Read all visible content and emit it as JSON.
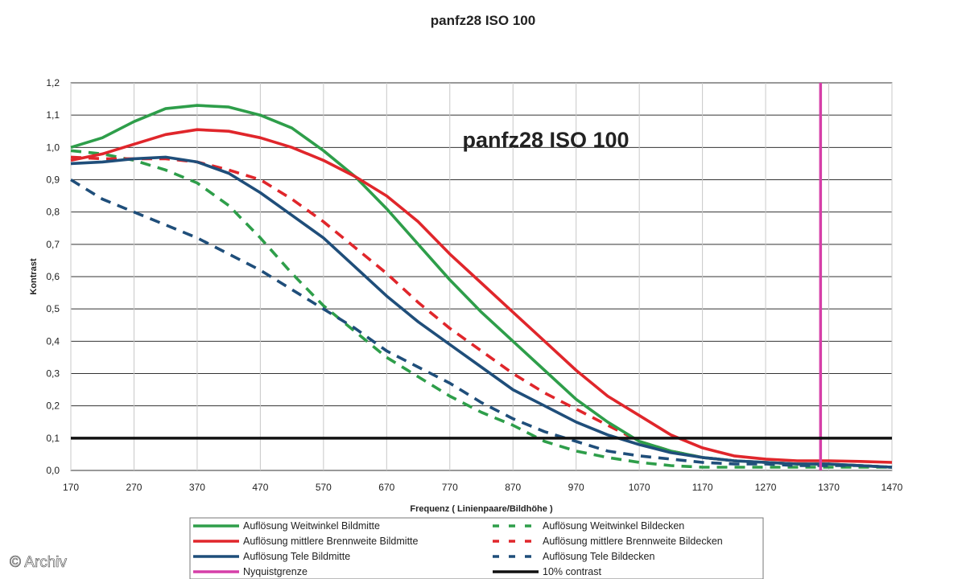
{
  "chart_data": {
    "type": "line",
    "title": "panfz28 ISO 100",
    "inner_title": "panfz28 ISO 100",
    "xlabel": "Frequenz ( Linienpaare/Bildhöhe )",
    "ylabel": "Kontrast",
    "xlim": [
      170,
      1470
    ],
    "ylim": [
      0.0,
      1.2
    ],
    "x_ticks": [
      "170",
      "270",
      "370",
      "470",
      "570",
      "670",
      "770",
      "870",
      "970",
      "1070",
      "1170",
      "1270",
      "1370",
      "1470"
    ],
    "y_ticks": [
      "0,0",
      "0,1",
      "0,2",
      "0,3",
      "0,4",
      "0,5",
      "0,6",
      "0,7",
      "0,8",
      "0,9",
      "1,0",
      "1,1",
      "1,2"
    ],
    "grid": "horizontal and vertical",
    "legend_position": "bottom",
    "series": [
      {
        "name": "Auflösung Weitwinkel Bildmitte",
        "color": "#2e9e4a",
        "style": "solid",
        "x": [
          170,
          220,
          270,
          320,
          370,
          420,
          470,
          520,
          570,
          620,
          670,
          720,
          770,
          820,
          870,
          920,
          970,
          1020,
          1070,
          1120,
          1170,
          1220,
          1270,
          1320,
          1370,
          1420,
          1470
        ],
        "y": [
          1.0,
          1.03,
          1.08,
          1.12,
          1.13,
          1.125,
          1.1,
          1.06,
          0.99,
          0.91,
          0.81,
          0.7,
          0.59,
          0.49,
          0.4,
          0.31,
          0.22,
          0.15,
          0.09,
          0.06,
          0.04,
          0.03,
          0.025,
          0.02,
          0.02,
          0.015,
          0.01
        ]
      },
      {
        "name": "Auflösung mittlere Brennweite Bildmitte",
        "color": "#e0262b",
        "style": "solid",
        "x": [
          170,
          220,
          270,
          320,
          370,
          420,
          470,
          520,
          570,
          620,
          670,
          720,
          770,
          820,
          870,
          920,
          970,
          1020,
          1070,
          1120,
          1170,
          1220,
          1270,
          1320,
          1370,
          1420,
          1470
        ],
        "y": [
          0.96,
          0.98,
          1.01,
          1.04,
          1.055,
          1.05,
          1.03,
          1.0,
          0.96,
          0.91,
          0.85,
          0.77,
          0.67,
          0.58,
          0.49,
          0.4,
          0.31,
          0.23,
          0.17,
          0.11,
          0.07,
          0.045,
          0.035,
          0.03,
          0.03,
          0.028,
          0.025
        ]
      },
      {
        "name": "Auflösung Tele Bildmitte",
        "color": "#1f4e7a",
        "style": "solid",
        "x": [
          170,
          220,
          270,
          320,
          370,
          420,
          470,
          520,
          570,
          620,
          670,
          720,
          770,
          820,
          870,
          920,
          970,
          1020,
          1070,
          1120,
          1170,
          1220,
          1270,
          1320,
          1370,
          1420,
          1470
        ],
        "y": [
          0.95,
          0.955,
          0.965,
          0.97,
          0.955,
          0.92,
          0.86,
          0.79,
          0.72,
          0.63,
          0.54,
          0.46,
          0.39,
          0.32,
          0.25,
          0.2,
          0.15,
          0.11,
          0.08,
          0.055,
          0.04,
          0.03,
          0.025,
          0.02,
          0.02,
          0.015,
          0.01
        ]
      },
      {
        "name": "Auflösung Weitwinkel Bildecken",
        "color": "#2e9e4a",
        "style": "dashed",
        "x": [
          170,
          220,
          270,
          320,
          370,
          420,
          470,
          520,
          570,
          620,
          670,
          720,
          770,
          820,
          870,
          920,
          970,
          1020,
          1070,
          1120,
          1170,
          1220,
          1270,
          1320,
          1370,
          1420,
          1470
        ],
        "y": [
          0.99,
          0.98,
          0.96,
          0.93,
          0.89,
          0.82,
          0.72,
          0.61,
          0.51,
          0.43,
          0.35,
          0.29,
          0.23,
          0.18,
          0.14,
          0.09,
          0.06,
          0.04,
          0.025,
          0.015,
          0.01,
          0.01,
          0.01,
          0.01,
          0.01,
          0.01,
          0.01
        ]
      },
      {
        "name": "Auflösung mittlere Brennweite Bildecken",
        "color": "#e0262b",
        "style": "dashed",
        "x": [
          170,
          220,
          270,
          320,
          370,
          420,
          470,
          520,
          570,
          620,
          670,
          720,
          770,
          820,
          870,
          920,
          970,
          1020,
          1070,
          1120,
          1170,
          1220,
          1270,
          1320,
          1370,
          1420,
          1470
        ],
        "y": [
          0.97,
          0.965,
          0.965,
          0.965,
          0.955,
          0.93,
          0.9,
          0.84,
          0.77,
          0.69,
          0.61,
          0.52,
          0.44,
          0.37,
          0.3,
          0.24,
          0.19,
          0.14,
          0.09,
          0.06,
          0.04,
          0.03,
          0.025,
          0.02,
          0.02,
          0.015,
          0.01
        ]
      },
      {
        "name": "Auflösung Tele Bildecken",
        "color": "#1f4e7a",
        "style": "dashed",
        "x": [
          170,
          220,
          270,
          320,
          370,
          420,
          470,
          520,
          570,
          620,
          670,
          720,
          770,
          820,
          870,
          920,
          970,
          1020,
          1070,
          1120,
          1170,
          1220,
          1270,
          1320,
          1370,
          1420,
          1470
        ],
        "y": [
          0.9,
          0.84,
          0.8,
          0.76,
          0.72,
          0.67,
          0.62,
          0.56,
          0.5,
          0.44,
          0.37,
          0.32,
          0.27,
          0.21,
          0.16,
          0.12,
          0.09,
          0.06,
          0.045,
          0.035,
          0.025,
          0.02,
          0.02,
          0.015,
          0.015,
          0.015,
          0.01
        ]
      }
    ],
    "reference_lines": [
      {
        "name": "Nyquistgrenze",
        "color": "#d63fa8",
        "orientation": "vertical",
        "value": 1357
      },
      {
        "name": "10% contrast",
        "color": "#111111",
        "orientation": "horizontal",
        "value": 0.1
      }
    ],
    "legend_entries": [
      {
        "label": "Auflösung Weitwinkel Bildmitte",
        "color": "#2e9e4a",
        "style": "solid"
      },
      {
        "label": "Auflösung Weitwinkel Bildecken",
        "color": "#2e9e4a",
        "style": "dashed"
      },
      {
        "label": "Auflösung mittlere Brennweite Bildmitte",
        "color": "#e0262b",
        "style": "solid"
      },
      {
        "label": "Auflösung mittlere Brennweite Bildecken",
        "color": "#e0262b",
        "style": "dashed"
      },
      {
        "label": "Auflösung Tele Bildmitte",
        "color": "#1f4e7a",
        "style": "solid"
      },
      {
        "label": "Auflösung Tele Bildecken",
        "color": "#1f4e7a",
        "style": "dashed"
      },
      {
        "label": "Nyquistgrenze",
        "color": "#d63fa8",
        "style": "solid"
      },
      {
        "label": "10% contrast",
        "color": "#111111",
        "style": "solid"
      }
    ]
  },
  "watermark": "© Archiv"
}
